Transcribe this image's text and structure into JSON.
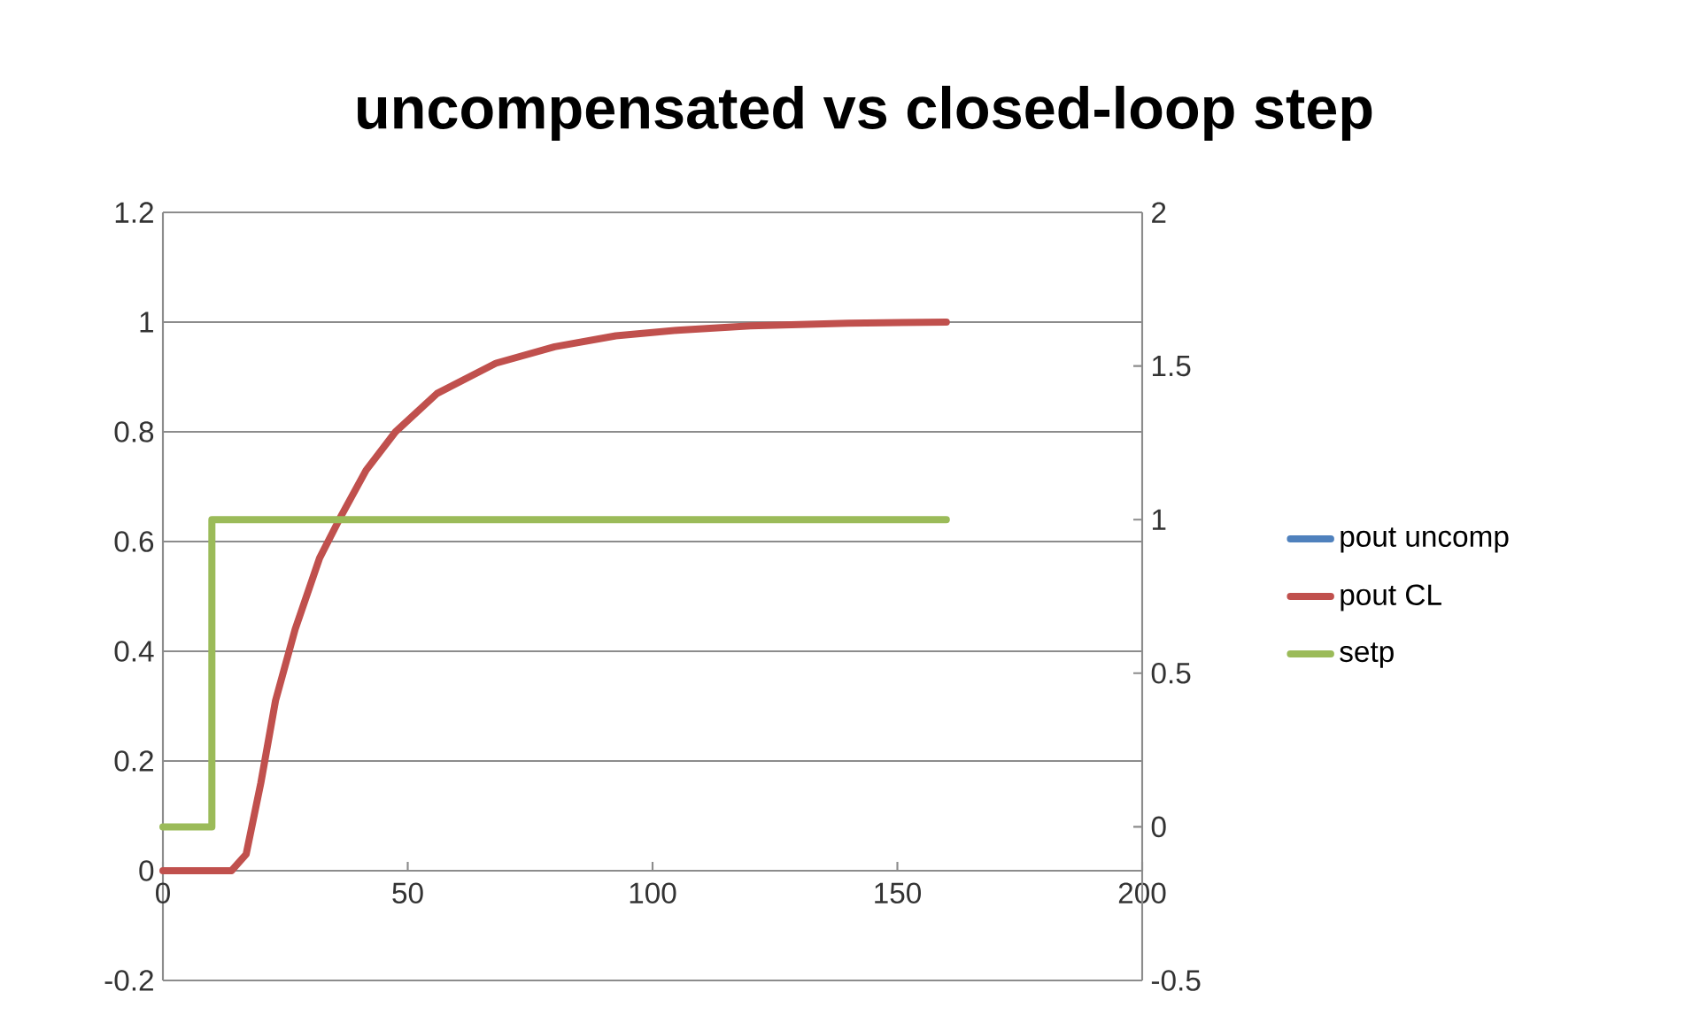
{
  "chart_data": {
    "type": "line",
    "title": "uncompensated vs closed-loop step",
    "series": [
      {
        "name": "pout uncomp",
        "color": "#4f81bd"
      },
      {
        "name": "pout CL",
        "color": "#c0504d",
        "x": [
          0,
          14,
          17,
          20,
          23,
          27,
          32,
          36,
          41.5,
          47.5,
          56,
          68,
          80,
          92.5,
          105,
          120,
          140,
          160
        ],
        "values": [
          0,
          0,
          0.03,
          0.16,
          0.31,
          0.44,
          0.57,
          0.64,
          0.73,
          0.8,
          0.87,
          0.925,
          0.955,
          0.975,
          0.985,
          0.993,
          0.998,
          1
        ]
      },
      {
        "name": "setp",
        "color": "#9bbb59",
        "axis": "y2",
        "x": [
          0,
          10,
          10,
          160
        ],
        "values": [
          0,
          0,
          1,
          1
        ]
      }
    ],
    "xlim": [
      0,
      200
    ],
    "xticks": [
      0,
      50,
      100,
      150,
      200
    ],
    "ylim": [
      -0.2,
      1.2
    ],
    "yticks": [
      -0.2,
      0,
      0.2,
      0.4,
      0.6,
      0.8,
      1,
      1.2
    ],
    "y2lim": [
      -0.5,
      2
    ],
    "y2ticks": [
      -0.5,
      0,
      0.5,
      1,
      1.5,
      2
    ],
    "grid": "y",
    "legend": "right"
  }
}
